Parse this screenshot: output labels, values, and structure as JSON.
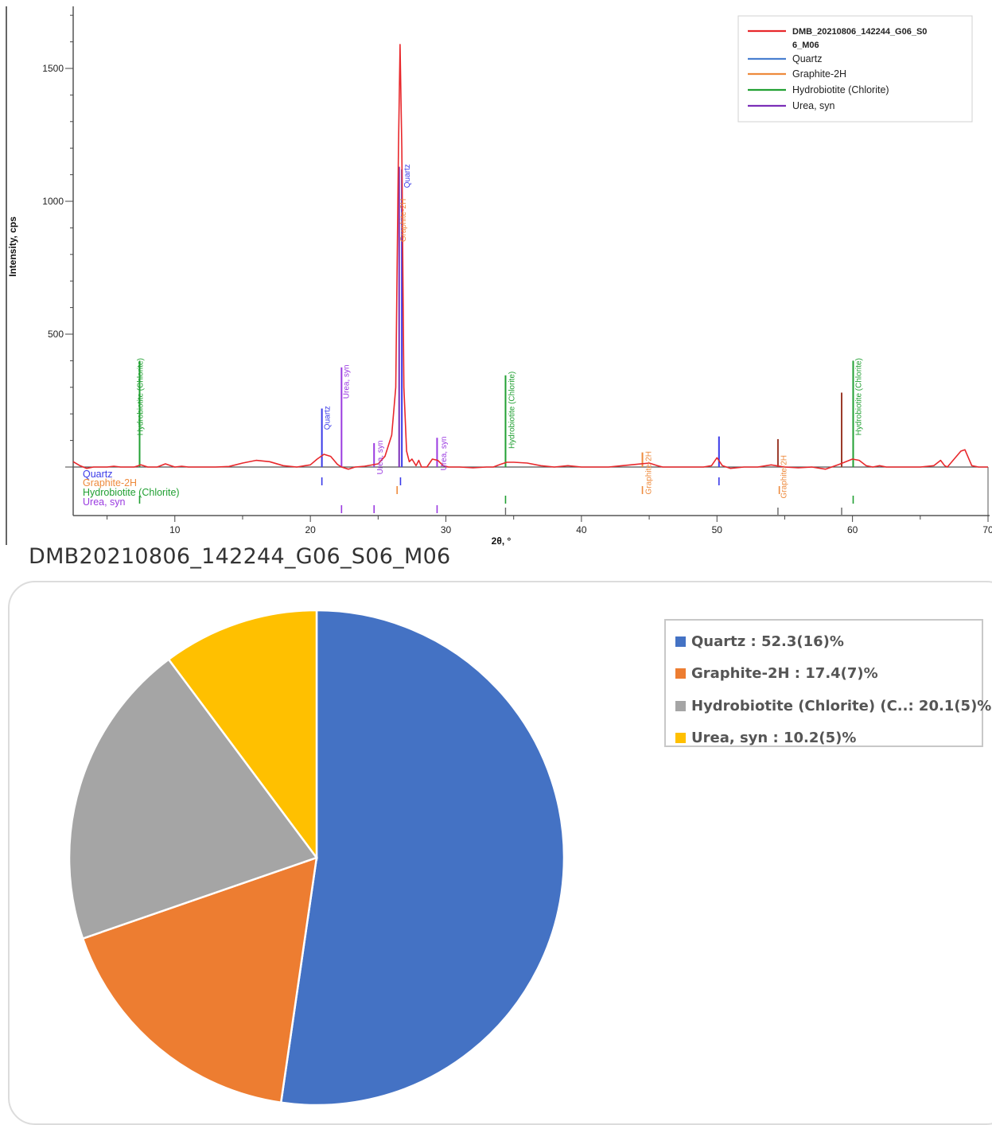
{
  "chart_data": [
    {
      "type": "line",
      "ylabel": "Intensity, cps",
      "xlabel": "2θ, °",
      "xlim": [
        2.5,
        70
      ],
      "ylim": [
        -185,
        1750
      ],
      "x_ticks": [
        10,
        20,
        30,
        40,
        50,
        60,
        70
      ],
      "y_ticks": [
        500,
        1000,
        1500
      ],
      "legend": {
        "placement": "top-right",
        "entries": [
          {
            "name": "DMB_20210806_142244_G06_S0",
            "name_line2": "6_M06",
            "color": "#e8282c"
          },
          {
            "name": "Quartz",
            "color": "#4a7fd0"
          },
          {
            "name": "Graphite-2H",
            "color": "#ee8a3c"
          },
          {
            "name": "Hydrobiotite (Chlorite)",
            "color": "#22a033"
          },
          {
            "name": "Urea, syn",
            "color": "#7b2fb8"
          }
        ]
      },
      "pattern": {
        "name": "DMB_20210806_142244_G06_S06_M06",
        "color": "#e8282c",
        "points": [
          [
            2.5,
            20
          ],
          [
            3,
            5
          ],
          [
            3.5,
            -5
          ],
          [
            4,
            0
          ],
          [
            5,
            0
          ],
          [
            5.5,
            3
          ],
          [
            6,
            0
          ],
          [
            7,
            0
          ],
          [
            7.5,
            8
          ],
          [
            8,
            0
          ],
          [
            8.7,
            0
          ],
          [
            9.3,
            12
          ],
          [
            10,
            0
          ],
          [
            10.5,
            3
          ],
          [
            11,
            0
          ],
          [
            13,
            0
          ],
          [
            14,
            2
          ],
          [
            15,
            15
          ],
          [
            16,
            25
          ],
          [
            17,
            20
          ],
          [
            18,
            5
          ],
          [
            19,
            0
          ],
          [
            20,
            8
          ],
          [
            20.5,
            30
          ],
          [
            21,
            48
          ],
          [
            21.5,
            40
          ],
          [
            22,
            10
          ],
          [
            22.3,
            0
          ],
          [
            22.8,
            -8
          ],
          [
            23.3,
            0
          ],
          [
            24,
            3
          ],
          [
            25,
            12
          ],
          [
            25.5,
            40
          ],
          [
            26,
            120
          ],
          [
            26.3,
            300
          ],
          [
            26.5,
            1200
          ],
          [
            26.62,
            1590
          ],
          [
            26.75,
            1200
          ],
          [
            26.9,
            300
          ],
          [
            27.1,
            60
          ],
          [
            27.3,
            20
          ],
          [
            27.5,
            30
          ],
          [
            27.8,
            5
          ],
          [
            28,
            25
          ],
          [
            28.2,
            0
          ],
          [
            28.6,
            0
          ],
          [
            29,
            30
          ],
          [
            29.4,
            25
          ],
          [
            29.8,
            5
          ],
          [
            30.2,
            0
          ],
          [
            31,
            0
          ],
          [
            32,
            -3
          ],
          [
            33,
            0
          ],
          [
            33.5,
            0
          ],
          [
            34,
            10
          ],
          [
            34.5,
            18
          ],
          [
            35,
            18
          ],
          [
            36,
            15
          ],
          [
            37,
            5
          ],
          [
            38,
            0
          ],
          [
            39,
            5
          ],
          [
            40,
            0
          ],
          [
            42,
            0
          ],
          [
            43,
            5
          ],
          [
            44,
            10
          ],
          [
            45,
            15
          ],
          [
            45.6,
            5
          ],
          [
            46,
            0
          ],
          [
            48,
            0
          ],
          [
            49,
            0
          ],
          [
            49.6,
            5
          ],
          [
            50,
            35
          ],
          [
            50.4,
            5
          ],
          [
            51,
            -5
          ],
          [
            52,
            0
          ],
          [
            53,
            0
          ],
          [
            54,
            8
          ],
          [
            55,
            0
          ],
          [
            56,
            -3
          ],
          [
            57,
            0
          ],
          [
            58,
            -8
          ],
          [
            59,
            10
          ],
          [
            60,
            30
          ],
          [
            60.5,
            25
          ],
          [
            61,
            5
          ],
          [
            61.5,
            0
          ],
          [
            62,
            5
          ],
          [
            62.5,
            0
          ],
          [
            65,
            0
          ],
          [
            66,
            5
          ],
          [
            66.5,
            25
          ],
          [
            66.8,
            5
          ],
          [
            67,
            0
          ],
          [
            67.5,
            30
          ],
          [
            68,
            60
          ],
          [
            68.3,
            65
          ],
          [
            68.8,
            5
          ],
          [
            69.3,
            0
          ],
          [
            70,
            0
          ]
        ]
      },
      "reference_lines": [
        {
          "phase": "Hydrobiotite (Chlorite)",
          "x": 7.4,
          "y": 400,
          "color": "#22a033"
        },
        {
          "phase": "Quartz",
          "x": 20.85,
          "y": 220,
          "color": "#3a3ae8"
        },
        {
          "phase": "Urea, syn",
          "x": 22.3,
          "y": 375,
          "color": "#9a3ae0"
        },
        {
          "phase": "Urea, syn",
          "x": 24.7,
          "y": 90,
          "color": "#9a3ae0"
        },
        {
          "phase": "Urea, syn",
          "x": 26.55,
          "y": 1130,
          "color": "#7b2fb8"
        },
        {
          "phase": "Quartz",
          "x": 26.75,
          "y": 1120,
          "color": "#3a3ae8"
        },
        {
          "phase": "Urea, syn",
          "x": 29.35,
          "y": 110,
          "color": "#9a3ae0"
        },
        {
          "phase": "Hydrobiotite (Chlorite)",
          "x": 34.4,
          "y": 345,
          "color": "#22a033"
        },
        {
          "phase": "Graphite-2H",
          "x": 44.5,
          "y": 55,
          "color": "#ee8a3c"
        },
        {
          "phase": "Quartz",
          "x": 50.15,
          "y": 115,
          "color": "#3a3ae8"
        },
        {
          "phase": "",
          "x": 54.5,
          "y": 105,
          "color": "#9b3a2a"
        },
        {
          "phase": "",
          "x": 59.2,
          "y": 280,
          "color": "#9b3a2a"
        },
        {
          "phase": "Hydrobiotite (Chlorite)",
          "x": 60.05,
          "y": 400,
          "color": "#22a033"
        }
      ],
      "peak_labels": [
        {
          "text": "Hydrobiotite (Chlorite)",
          "x": 7.4,
          "y": 410,
          "color": "#22a033"
        },
        {
          "text": "Quartz",
          "x": 21.2,
          "y": 230,
          "color": "#3a3ae8"
        },
        {
          "text": "Urea, syn",
          "x": 22.6,
          "y": 385,
          "color": "#9a3ae0"
        },
        {
          "text": "Urea, syn",
          "x": 25.1,
          "y": 100,
          "color": "#9a3ae0"
        },
        {
          "text": "Graphite-2H",
          "x": 26.8,
          "y": 1010,
          "color": "#ee8a3c"
        },
        {
          "text": "Quartz",
          "x": 27.1,
          "y": 1140,
          "color": "#3a3ae8"
        },
        {
          "text": "Urea, syn",
          "x": 29.8,
          "y": 115,
          "color": "#9a3ae0"
        },
        {
          "text": "Hydrobiotite (Chlorite)",
          "x": 34.8,
          "y": 360,
          "color": "#22a033"
        },
        {
          "text": "Graphite-2H",
          "x": 44.9,
          "y": 60,
          "color": "#ee8a3c"
        },
        {
          "text": "Graphite-2H",
          "x": 54.9,
          "y": 45,
          "color": "#ee8a3c"
        },
        {
          "text": "Hydrobiotite (Chlorite)",
          "x": 60.4,
          "y": 410,
          "color": "#22a033"
        }
      ],
      "phase_rows": [
        {
          "name": "Quartz",
          "color": "#3a3ae8",
          "positions": [
            20.85,
            26.65,
            50.15
          ]
        },
        {
          "name": "Graphite-2H",
          "color": "#ee8a3c",
          "positions": [
            26.4,
            44.5,
            54.6
          ]
        },
        {
          "name": "Hydrobiotite (Chlorite)",
          "color": "#22a033",
          "positions": [
            7.4,
            34.4,
            60.05
          ]
        },
        {
          "name": "Urea, syn",
          "color": "#9a3ae0",
          "positions": [
            22.3,
            24.7,
            29.35
          ]
        }
      ],
      "extra_ticks": [
        34.4,
        54.5,
        59.2
      ]
    },
    {
      "type": "pie",
      "title": "DMB20210806_142244_G06_S06_M06",
      "legend_placement": "right",
      "slices": [
        {
          "label": "Quartz : 52.3(16)%",
          "value": 52.3,
          "color": "#4472c4"
        },
        {
          "label": "Graphite-2H : 17.4(7)%",
          "value": 17.4,
          "color": "#ed7d31"
        },
        {
          "label": "Hydrobiotite (Chlorite) (C..: 20.1(5)%",
          "value": 20.1,
          "color": "#a5a5a5"
        },
        {
          "label": "Urea, syn : 10.2(5)%",
          "value": 10.2,
          "color": "#ffc000"
        }
      ]
    }
  ]
}
